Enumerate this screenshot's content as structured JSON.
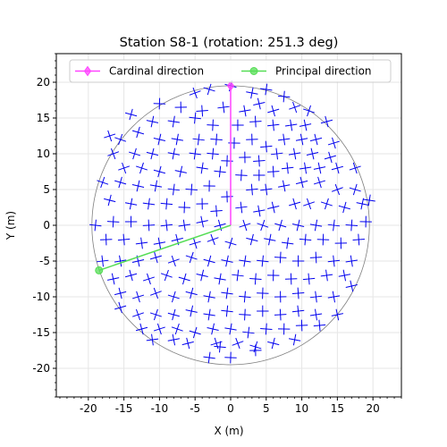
{
  "chart_data": {
    "type": "scatter",
    "title": "Station S8-1 (rotation: 251.3 deg)",
    "xlabel": "X (m)",
    "ylabel": "Y (m)",
    "xlim": [
      -24.5,
      24.0
    ],
    "ylim": [
      -24.0,
      24.0
    ],
    "xticks": [
      -20,
      -15,
      -10,
      -5,
      0,
      5,
      10,
      15,
      20
    ],
    "yticks": [
      -20,
      -15,
      -10,
      -5,
      0,
      5,
      10,
      15,
      20
    ],
    "grid": true,
    "legend": {
      "placement": "top",
      "columns": 2
    },
    "boundary_circle": {
      "center": [
        0,
        0
      ],
      "radius": 19.5,
      "color": "#808080"
    },
    "cross_marker_size_m": 0.8,
    "series": [
      {
        "name": "Cardinal direction",
        "type": "line",
        "color": "#ff44ff",
        "marker": "diamond",
        "x": [
          0,
          0
        ],
        "y": [
          0,
          19.5
        ]
      },
      {
        "name": "Principal direction",
        "type": "line",
        "color": "#55dd55",
        "marker": "circle",
        "x": [
          0,
          -18.5
        ],
        "y": [
          0,
          -6.3
        ]
      },
      {
        "name": "",
        "type": "scatter",
        "color": "#0000ee",
        "marker": "rotated-cross",
        "points": [
          [
            -5,
            18.5
          ],
          [
            -3,
            19
          ],
          [
            0,
            19.5
          ],
          [
            3,
            18.5
          ],
          [
            5,
            19
          ],
          [
            7.5,
            18
          ],
          [
            -10,
            17
          ],
          [
            -7,
            16.5
          ],
          [
            -4,
            16
          ],
          [
            -1,
            16.5
          ],
          [
            2,
            16
          ],
          [
            4,
            17
          ],
          [
            6,
            16
          ],
          [
            9,
            16.5
          ],
          [
            11,
            16
          ],
          [
            -14,
            15.5
          ],
          [
            -11,
            14.5
          ],
          [
            -8,
            14.5
          ],
          [
            -5,
            15
          ],
          [
            -2.5,
            14
          ],
          [
            1,
            14
          ],
          [
            3.5,
            14.5
          ],
          [
            6,
            14
          ],
          [
            8.5,
            14
          ],
          [
            10.5,
            14
          ],
          [
            13.5,
            14.5
          ],
          [
            -17,
            12.5
          ],
          [
            -15.5,
            12
          ],
          [
            -13,
            13
          ],
          [
            -10,
            12
          ],
          [
            -7.5,
            12
          ],
          [
            -4.5,
            12
          ],
          [
            -2,
            12
          ],
          [
            0.5,
            11.5
          ],
          [
            3,
            12
          ],
          [
            5,
            11
          ],
          [
            7.5,
            12
          ],
          [
            10,
            12
          ],
          [
            12,
            12
          ],
          [
            14.5,
            11.5
          ],
          [
            -16.5,
            10
          ],
          [
            -13.5,
            10
          ],
          [
            -11,
            10
          ],
          [
            -8,
            10
          ],
          [
            -5,
            10
          ],
          [
            -2.5,
            10
          ],
          [
            -0.5,
            9
          ],
          [
            2,
            9.5
          ],
          [
            4,
            9
          ],
          [
            6.5,
            10
          ],
          [
            9,
            10
          ],
          [
            11.5,
            10
          ],
          [
            14,
            9.5
          ],
          [
            -15,
            8
          ],
          [
            -12.5,
            8
          ],
          [
            -10,
            7.5
          ],
          [
            -7,
            7.5
          ],
          [
            -4,
            8
          ],
          [
            -1.5,
            7.5
          ],
          [
            1.5,
            7
          ],
          [
            4,
            7
          ],
          [
            6,
            7.5
          ],
          [
            8,
            8
          ],
          [
            10.5,
            8
          ],
          [
            12.5,
            8
          ],
          [
            15,
            8
          ],
          [
            17.5,
            8
          ],
          [
            -18,
            6
          ],
          [
            -15.5,
            6
          ],
          [
            -13,
            5.5
          ],
          [
            -10.5,
            5.5
          ],
          [
            -8,
            5
          ],
          [
            -5.5,
            5
          ],
          [
            -3,
            5.5
          ],
          [
            -0.5,
            4
          ],
          [
            3,
            5
          ],
          [
            5,
            5
          ],
          [
            7.5,
            5.5
          ],
          [
            10,
            6
          ],
          [
            12.5,
            6
          ],
          [
            15,
            5
          ],
          [
            17.5,
            5
          ],
          [
            -17,
            3.5
          ],
          [
            -14,
            3
          ],
          [
            -11.5,
            3
          ],
          [
            -9,
            3
          ],
          [
            -6.5,
            2.5
          ],
          [
            -4,
            3
          ],
          [
            -2,
            2
          ],
          [
            1.5,
            2.5
          ],
          [
            4,
            2
          ],
          [
            6,
            2.5
          ],
          [
            9,
            3
          ],
          [
            11,
            3
          ],
          [
            13.5,
            3
          ],
          [
            16,
            2.5
          ],
          [
            18.5,
            3
          ],
          [
            19.5,
            3.5
          ],
          [
            -19,
            0
          ],
          [
            -16.5,
            0.5
          ],
          [
            -14,
            0.5
          ],
          [
            -11.5,
            0
          ],
          [
            -9,
            0
          ],
          [
            -6.5,
            0
          ],
          [
            -4,
            0.5
          ],
          [
            -1.5,
            0
          ],
          [
            2,
            0
          ],
          [
            4.5,
            0
          ],
          [
            7,
            0
          ],
          [
            9.5,
            0
          ],
          [
            12,
            0
          ],
          [
            14.5,
            0
          ],
          [
            17,
            0
          ],
          [
            19,
            0.5
          ],
          [
            -17.5,
            -2
          ],
          [
            -15,
            -2
          ],
          [
            -12.5,
            -2.5
          ],
          [
            -10,
            -2.5
          ],
          [
            -7.5,
            -2
          ],
          [
            -5,
            -2.5
          ],
          [
            -2.5,
            -2
          ],
          [
            0,
            -2.5
          ],
          [
            3,
            -2
          ],
          [
            5.5,
            -2
          ],
          [
            8,
            -2.5
          ],
          [
            10.5,
            -2
          ],
          [
            13,
            -2
          ],
          [
            15.5,
            -2.5
          ],
          [
            18,
            -2
          ],
          [
            -18,
            -5
          ],
          [
            -15.5,
            -5
          ],
          [
            -13,
            -5
          ],
          [
            -10.5,
            -4.5
          ],
          [
            -8,
            -5
          ],
          [
            -5.5,
            -4.5
          ],
          [
            -3,
            -5
          ],
          [
            -0.5,
            -5
          ],
          [
            2,
            -5
          ],
          [
            4.5,
            -5
          ],
          [
            7,
            -4.5
          ],
          [
            9.5,
            -5
          ],
          [
            12,
            -4.5
          ],
          [
            14.5,
            -5
          ],
          [
            17,
            -5
          ],
          [
            -16.5,
            -7.5
          ],
          [
            -14,
            -7
          ],
          [
            -11.5,
            -7.5
          ],
          [
            -9,
            -7
          ],
          [
            -6.5,
            -7.5
          ],
          [
            -4,
            -7
          ],
          [
            -1.5,
            -7.5
          ],
          [
            1,
            -7
          ],
          [
            3.5,
            -7.5
          ],
          [
            6,
            -7
          ],
          [
            8.5,
            -7.5
          ],
          [
            11,
            -7.5
          ],
          [
            13.5,
            -7
          ],
          [
            16,
            -7
          ],
          [
            -15.5,
            -9.5
          ],
          [
            -13,
            -10
          ],
          [
            -10.5,
            -9.5
          ],
          [
            -8,
            -10
          ],
          [
            -5.5,
            -9.5
          ],
          [
            -3,
            -10
          ],
          [
            -0.5,
            -9.5
          ],
          [
            2,
            -10
          ],
          [
            4.5,
            -9.5
          ],
          [
            7,
            -10
          ],
          [
            9.5,
            -9.5
          ],
          [
            12,
            -10
          ],
          [
            14.5,
            -10
          ],
          [
            17,
            -8.5
          ],
          [
            -15.5,
            -11.5
          ],
          [
            -13,
            -12.5
          ],
          [
            -10.5,
            -12.5
          ],
          [
            -8,
            -12.5
          ],
          [
            -5.5,
            -12
          ],
          [
            -3,
            -12.5
          ],
          [
            -0.5,
            -12
          ],
          [
            2,
            -12.5
          ],
          [
            4.5,
            -12
          ],
          [
            7,
            -12.5
          ],
          [
            9.5,
            -12
          ],
          [
            12,
            -12.5
          ],
          [
            15,
            -12.5
          ],
          [
            -12.5,
            -14.5
          ],
          [
            -10,
            -14.5
          ],
          [
            -7.5,
            -14.5
          ],
          [
            -5,
            -15
          ],
          [
            -2.5,
            -14.5
          ],
          [
            0,
            -14.5
          ],
          [
            2.5,
            -15
          ],
          [
            5,
            -14.5
          ],
          [
            7.5,
            -14.5
          ],
          [
            10,
            -14
          ],
          [
            12.5,
            -14
          ],
          [
            -11,
            -16
          ],
          [
            -8,
            -16
          ],
          [
            -6,
            -16.5
          ],
          [
            -2,
            -16.5
          ],
          [
            1,
            -16.5
          ],
          [
            3.5,
            -17
          ],
          [
            6,
            -16.5
          ],
          [
            9,
            -16
          ],
          [
            -3,
            -18.5
          ],
          [
            -1.5,
            -17
          ],
          [
            0,
            -18.5
          ],
          [
            3.5,
            -17.5
          ]
        ]
      }
    ]
  }
}
